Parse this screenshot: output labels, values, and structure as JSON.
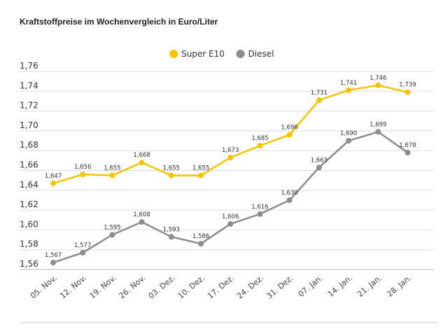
{
  "chart_data": {
    "type": "line",
    "title": "Kraftstoffpreise im Wochenvergleich in Euro/Liter",
    "categories": [
      "05. Nov.",
      "12. Nov.",
      "19. Nov.",
      "26. Nov.",
      "03. Dez.",
      "10. Dez.",
      "17. Dez.",
      "24. Dez.",
      "31. Dez.",
      "07. Jan.",
      "14. Jan.",
      "21. Jan.",
      "28. Jan."
    ],
    "series": [
      {
        "name": "Super E10",
        "color": "#f5c400",
        "values": [
          1.647,
          1.656,
          1.655,
          1.668,
          1.655,
          1.655,
          1.673,
          1.685,
          1.696,
          1.731,
          1.741,
          1.746,
          1.739
        ],
        "labels": [
          "1,647",
          "1,656",
          "1,655",
          "1,668",
          "1,655",
          "1,655",
          "1,673",
          "1,685",
          "1,696",
          "1,731",
          "1,741",
          "1,746",
          "1,739"
        ]
      },
      {
        "name": "Diesel",
        "color": "#8c8c8c",
        "values": [
          1.567,
          1.577,
          1.595,
          1.608,
          1.593,
          1.586,
          1.606,
          1.616,
          1.63,
          1.663,
          1.69,
          1.699,
          1.678
        ],
        "labels": [
          "1,567",
          "1,577",
          "1,595",
          "1,608",
          "1,593",
          "1,586",
          "1,606",
          "1,616",
          "1,630",
          "1,663",
          "1,690",
          "1,699",
          "1,678"
        ]
      }
    ],
    "ylim": [
      1.56,
      1.76
    ],
    "yticks": [
      1.56,
      1.58,
      1.6,
      1.62,
      1.64,
      1.66,
      1.68,
      1.7,
      1.72,
      1.74,
      1.76
    ],
    "ytick_labels": [
      "1,56",
      "1,58",
      "1,60",
      "1,62",
      "1,64",
      "1,66",
      "1,68",
      "1,70",
      "1,72",
      "1,74",
      "1,76"
    ],
    "grid": true,
    "legend": "top-center"
  }
}
